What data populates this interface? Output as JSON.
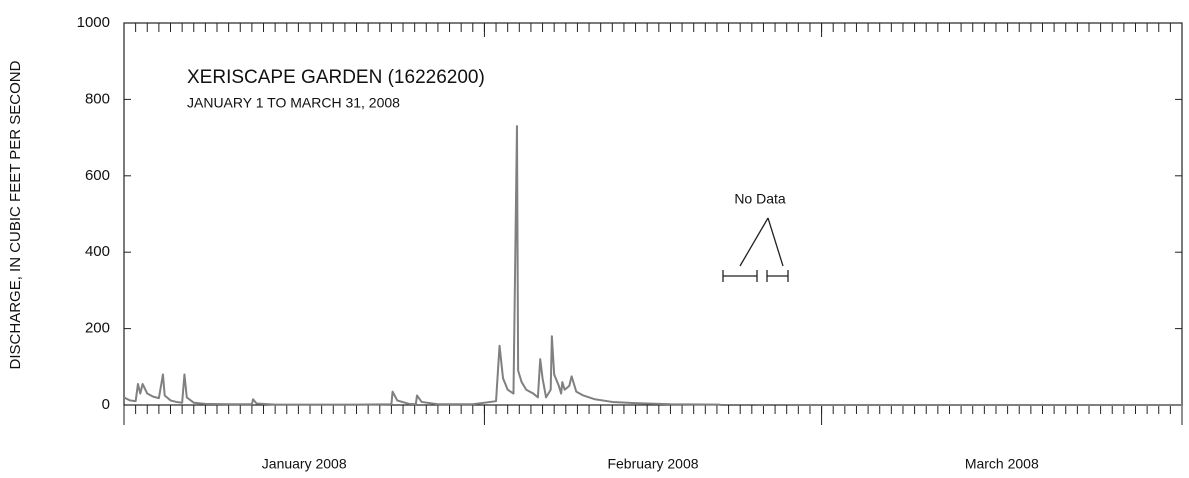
{
  "chart_data": {
    "type": "line",
    "title": "XERISCAPE GARDEN (16226200)",
    "subtitle": "JANUARY 1 TO MARCH 31, 2008",
    "ylabel": "DISCHARGE, IN CUBIC FEET PER SECOND",
    "annotation": "No Data",
    "xlim": [
      0,
      91
    ],
    "xticks": [
      {
        "value": 15.5,
        "label": "January 2008"
      },
      {
        "value": 45.5,
        "label": "February 2008"
      },
      {
        "value": 75.5,
        "label": "March 2008"
      }
    ],
    "xmajorticks": [
      0,
      31,
      60,
      91
    ],
    "xminorticks": [
      0,
      1,
      2,
      3,
      4,
      5,
      6,
      7,
      8,
      9,
      10,
      11,
      12,
      13,
      14,
      15,
      16,
      17,
      18,
      19,
      20,
      21,
      22,
      23,
      24,
      25,
      26,
      27,
      28,
      29,
      30,
      31,
      32,
      33,
      34,
      35,
      36,
      37,
      38,
      39,
      40,
      41,
      42,
      43,
      44,
      45,
      46,
      47,
      48,
      49,
      50,
      51,
      52,
      53,
      54,
      55,
      56,
      57,
      58,
      59,
      60,
      61,
      62,
      63,
      64,
      65,
      66,
      67,
      68,
      69,
      70,
      71,
      72,
      73,
      74,
      75,
      76,
      77,
      78,
      79,
      80,
      81,
      82,
      83,
      84,
      85,
      86,
      87,
      88,
      89,
      90,
      91
    ],
    "ylim": [
      0,
      1000
    ],
    "yticks": [
      0,
      200,
      400,
      600,
      800,
      1000
    ],
    "grid": false,
    "series": [
      {
        "name": "Discharge",
        "color": "#808080",
        "x": [
          0,
          0.5,
          1.0,
          1.2,
          1.4,
          1.6,
          2.0,
          2.5,
          3.0,
          3.35,
          3.5,
          4.0,
          4.5,
          5.0,
          5.2,
          5.4,
          6.0,
          7,
          9,
          11.0,
          11.1,
          11.4,
          13,
          18,
          20,
          23.0,
          23.1,
          23.5,
          24.5,
          25.1,
          25.2,
          25.6,
          27,
          30,
          32.0,
          32.3,
          32.6,
          33.0,
          33.5,
          33.8,
          33.9,
          34.2,
          34.6,
          35.2,
          35.6,
          35.8,
          36.0,
          36.3,
          36.7,
          36.8,
          37.0,
          37.4,
          37.6,
          37.7,
          37.9,
          38.3,
          38.5,
          38.9,
          39.5,
          40.5,
          42,
          44,
          47,
          51.3,
          51.4,
          54.4,
          55.1,
          55.5,
          57.1,
          91
        ],
        "values": [
          20,
          12,
          10,
          55,
          30,
          55,
          30,
          22,
          18,
          80,
          25,
          12,
          8,
          6,
          80,
          20,
          6,
          3,
          2,
          2,
          15,
          4,
          1,
          1,
          1,
          2,
          35,
          12,
          3,
          2,
          25,
          8,
          2,
          2,
          10,
          155,
          70,
          40,
          30,
          730,
          90,
          60,
          40,
          30,
          20,
          120,
          70,
          20,
          40,
          180,
          80,
          50,
          30,
          60,
          40,
          50,
          75,
          35,
          25,
          15,
          8,
          5,
          2,
          1,
          null,
          0,
          0,
          null,
          0,
          0
        ]
      }
    ]
  }
}
